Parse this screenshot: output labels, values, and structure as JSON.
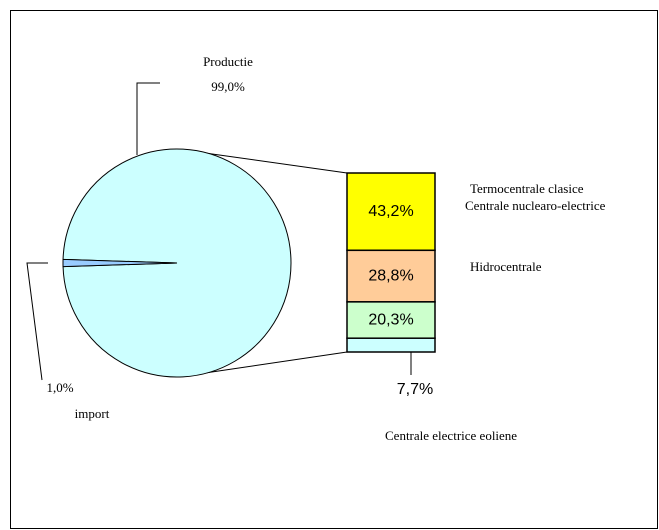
{
  "chart_data": {
    "type": "pie",
    "categories": [
      "Productie",
      "import"
    ],
    "values": [
      99.0,
      1.0
    ],
    "value_labels": [
      "99,0%",
      "1,0%"
    ],
    "colors": [
      "#ccffff",
      "#99ccff"
    ],
    "bar": {
      "categories": [
        "Termocentrale clasice",
        "Hidrocentrale",
        "Centrale nuclearo-electrice",
        "Centrale electrice eoliene"
      ],
      "values": [
        43.2,
        28.8,
        20.3,
        7.7
      ],
      "value_labels": [
        "43,2%",
        "28,8%",
        "20,3%",
        "7,7%"
      ],
      "colors": [
        "#ffff00",
        "#ffcc99",
        "#ccffcc",
        "#ccffff"
      ]
    }
  }
}
